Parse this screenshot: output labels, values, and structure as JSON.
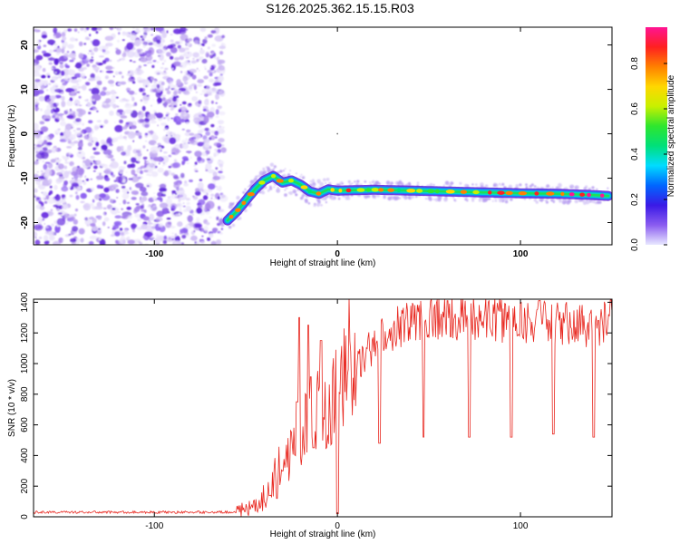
{
  "title": "S126.2025.362.15.15.R03",
  "chart_data": [
    {
      "type": "heatmap",
      "xlabel": "Height of straight line (km)",
      "ylabel": "Frequency (Hz)",
      "xlim": [
        -166,
        150
      ],
      "ylim": [
        -25,
        24
      ],
      "xticks": [
        -100,
        0,
        100
      ],
      "yticks": [
        -20,
        -10,
        0,
        10,
        20
      ],
      "colorbar": {
        "label": "Normalized spectral amplitude",
        "range": [
          0.0,
          0.96
        ],
        "ticks": [
          "0.0",
          "0.2",
          "0.4",
          "0.6",
          "0.8"
        ],
        "tick_values": [
          0.0,
          0.2,
          0.4,
          0.6,
          0.8
        ],
        "colors": [
          "#e8e8ff",
          "#8a5cf0",
          "#3a1ae6",
          "#0066ff",
          "#00dcff",
          "#00e07a",
          "#2ee62e",
          "#c8f000",
          "#ffd700",
          "#ff8000",
          "#ff2020",
          "#ff1493"
        ]
      },
      "noise_region_x": [
        -166,
        -62
      ],
      "ridge": {
        "x": [
          -60,
          -55,
          -50,
          -45,
          -40,
          -35,
          -30,
          -25,
          -20,
          -15,
          -10,
          -5,
          0,
          20,
          40,
          60,
          80,
          100,
          120,
          140,
          148
        ],
        "freq": [
          -19.5,
          -17.5,
          -15,
          -12.5,
          -10.5,
          -9.5,
          -11,
          -10.5,
          -11.5,
          -13,
          -13.5,
          -12.5,
          -12.8,
          -12.6,
          -12.8,
          -13.0,
          -13.2,
          -13.4,
          -13.5,
          -13.8,
          -14.0
        ]
      }
    },
    {
      "type": "line",
      "xlabel": "Height of straight line (km)",
      "ylabel": "SNR (10 * v/v)",
      "xlim": [
        -166,
        150
      ],
      "ylim": [
        0,
        1420
      ],
      "xticks": [
        -100,
        0,
        100
      ],
      "yticks": [
        0,
        200,
        400,
        600,
        800,
        1000,
        1200,
        1400
      ],
      "series": [
        {
          "name": "SNR",
          "color": "#e8261e",
          "envelope_x": [
            -166,
            -60,
            -50,
            -45,
            -40,
            -35,
            -30,
            -25,
            -20,
            -15,
            -10,
            -5,
            0,
            5,
            10,
            15,
            20,
            25,
            30,
            40,
            50,
            60,
            80,
            100,
            120,
            140,
            150
          ],
          "envelope_y": [
            30,
            30,
            40,
            60,
            130,
            250,
            350,
            450,
            550,
            650,
            700,
            750,
            820,
            880,
            950,
            1050,
            1120,
            1180,
            1230,
            1280,
            1300,
            1300,
            1300,
            1280,
            1260,
            1250,
            1300
          ],
          "dips": [
            {
              "x": -33,
              "y": 120
            },
            {
              "x": -30,
              "y": 300
            },
            {
              "x": -22,
              "y": 750
            },
            {
              "x": -13,
              "y": 450
            },
            {
              "x": 0,
              "y": 20
            },
            {
              "x": 23,
              "y": 480
            },
            {
              "x": 47,
              "y": 520
            },
            {
              "x": 72,
              "y": 520
            },
            {
              "x": 95,
              "y": 520
            },
            {
              "x": 118,
              "y": 540
            },
            {
              "x": 140,
              "y": 520
            }
          ],
          "spikes": [
            {
              "x": -21,
              "y": 1300
            },
            {
              "x": -16,
              "y": 1250
            },
            {
              "x": -9,
              "y": 1150
            },
            {
              "x": 60,
              "y": 1410
            },
            {
              "x": 100,
              "y": 1400
            },
            {
              "x": 110,
              "y": 1410
            }
          ]
        }
      ]
    }
  ]
}
